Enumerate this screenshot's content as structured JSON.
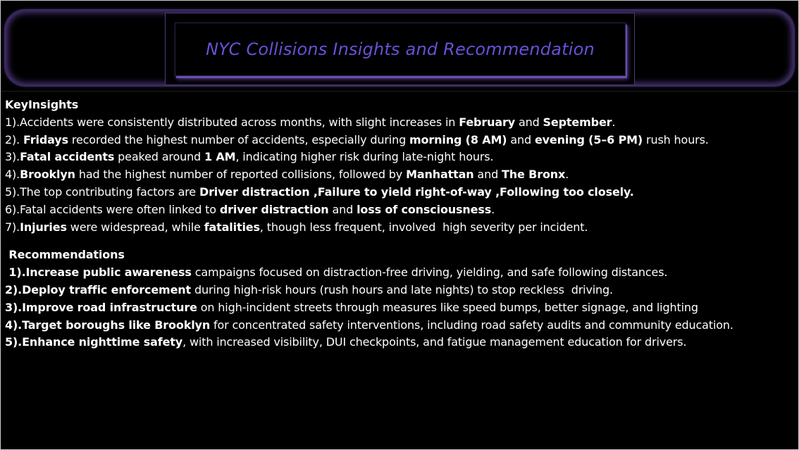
{
  "title": "NYC Collisions Insights and Recommendation",
  "colors": {
    "background": "#000000",
    "title_text": "#6b4fd6",
    "border_glow": "#5a3f94",
    "body_text": "#ffffff"
  },
  "insights": {
    "heading": "KeyInsights",
    "items": [
      [
        {
          "text": "1).Accidents were consistently distributed across months, with slight increases in ",
          "bold": false
        },
        {
          "text": "February",
          "bold": true
        },
        {
          "text": " and ",
          "bold": false
        },
        {
          "text": "September",
          "bold": true
        },
        {
          "text": ".",
          "bold": false
        }
      ],
      [
        {
          "text": "2). ",
          "bold": false
        },
        {
          "text": "Fridays",
          "bold": true
        },
        {
          "text": " recorded the highest number of accidents, especially during ",
          "bold": false
        },
        {
          "text": "morning (8 AM)",
          "bold": true
        },
        {
          "text": " and ",
          "bold": false
        },
        {
          "text": "evening (5–6 PM)",
          "bold": true
        },
        {
          "text": " rush hours.",
          "bold": false
        }
      ],
      [
        {
          "text": "3).",
          "bold": false
        },
        {
          "text": "Fatal accidents",
          "bold": true
        },
        {
          "text": " peaked around ",
          "bold": false
        },
        {
          "text": "1 AM",
          "bold": true
        },
        {
          "text": ", indicating higher risk during late-night hours.",
          "bold": false
        }
      ],
      [
        {
          "text": "4).",
          "bold": false
        },
        {
          "text": "Brooklyn",
          "bold": true
        },
        {
          "text": " had the highest number of reported collisions, followed by ",
          "bold": false
        },
        {
          "text": "Manhattan",
          "bold": true
        },
        {
          "text": " and ",
          "bold": false
        },
        {
          "text": "The Bronx",
          "bold": true
        },
        {
          "text": ".",
          "bold": false
        }
      ],
      [
        {
          "text": "5).The top contributing factors are ",
          "bold": false
        },
        {
          "text": "Driver distraction ,Failure to yield right-of-way ,Following too closely.",
          "bold": true
        }
      ],
      [
        {
          "text": "6).Fatal accidents were often linked to ",
          "bold": false
        },
        {
          "text": "driver distraction",
          "bold": true
        },
        {
          "text": " and ",
          "bold": false
        },
        {
          "text": "loss of consciousness",
          "bold": true
        },
        {
          "text": ".",
          "bold": false
        }
      ],
      [
        {
          "text": "7).",
          "bold": false
        },
        {
          "text": "Injuries",
          "bold": true
        },
        {
          "text": " were widespread, while ",
          "bold": false
        },
        {
          "text": "fatalities",
          "bold": true
        },
        {
          "text": ", though less frequent, involved  high severity per incident.",
          "bold": false
        }
      ]
    ]
  },
  "recommendations": {
    "heading": " Recommendations",
    "items": [
      [
        {
          "text": " 1).Increase public awareness",
          "bold": true
        },
        {
          "text": " campaigns focused on distraction-free driving, yielding, and safe following distances.",
          "bold": false
        }
      ],
      [
        {
          "text": "2).Deploy traffic enforcement",
          "bold": true
        },
        {
          "text": " during high-risk hours (rush hours and late nights) to stop reckless  driving.",
          "bold": false
        }
      ],
      [
        {
          "text": "3).Improve road infrastructure",
          "bold": true
        },
        {
          "text": " on high-incident streets through measures like speed bumps, better signage, and lighting",
          "bold": false
        }
      ],
      [
        {
          "text": "4).Target boroughs like Brooklyn",
          "bold": true
        },
        {
          "text": " for concentrated safety interventions, including road safety audits and community education.",
          "bold": false
        }
      ],
      [
        {
          "text": "5).Enhance nighttime safety",
          "bold": true
        },
        {
          "text": ", with increased visibility, DUI checkpoints, and fatigue management education for drivers.",
          "bold": false
        }
      ]
    ]
  }
}
